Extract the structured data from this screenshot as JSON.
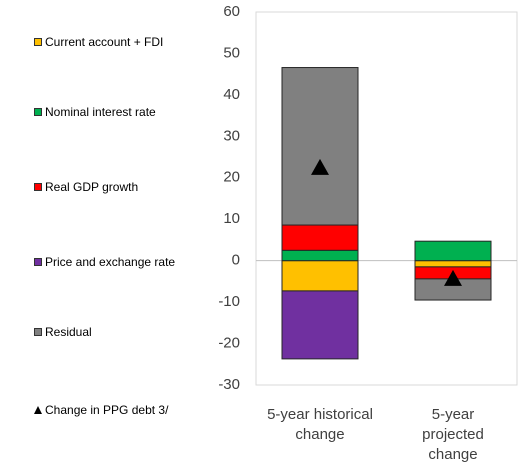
{
  "chart_data": {
    "type": "stacked_bar",
    "categories": [
      "5-year historical change",
      "5-year projected change"
    ],
    "series": [
      {
        "name": "Current account + FDI",
        "color": "#ffc000",
        "values": [
          -7.3,
          -1.5
        ]
      },
      {
        "name": "Nominal interest rate",
        "color": "#00b050",
        "values": [
          2.5,
          4.7
        ]
      },
      {
        "name": "Real GDP growth",
        "color": "#ff0000",
        "values": [
          6.1,
          -2.9
        ]
      },
      {
        "name": "Price and exchange rate",
        "color": "#7030a0",
        "values": [
          -16.4,
          0
        ]
      },
      {
        "name": "Residual",
        "color": "#808080",
        "values": [
          38,
          -5.1
        ]
      }
    ],
    "markers": {
      "name": "Change in PPG debt 3/",
      "color": "#000000",
      "values": [
        22.4,
        -4.4
      ]
    },
    "ylim": [
      -30,
      60
    ],
    "yticks": [
      -30,
      -20,
      -10,
      0,
      10,
      20,
      30,
      40,
      50,
      60
    ],
    "grid": false
  }
}
